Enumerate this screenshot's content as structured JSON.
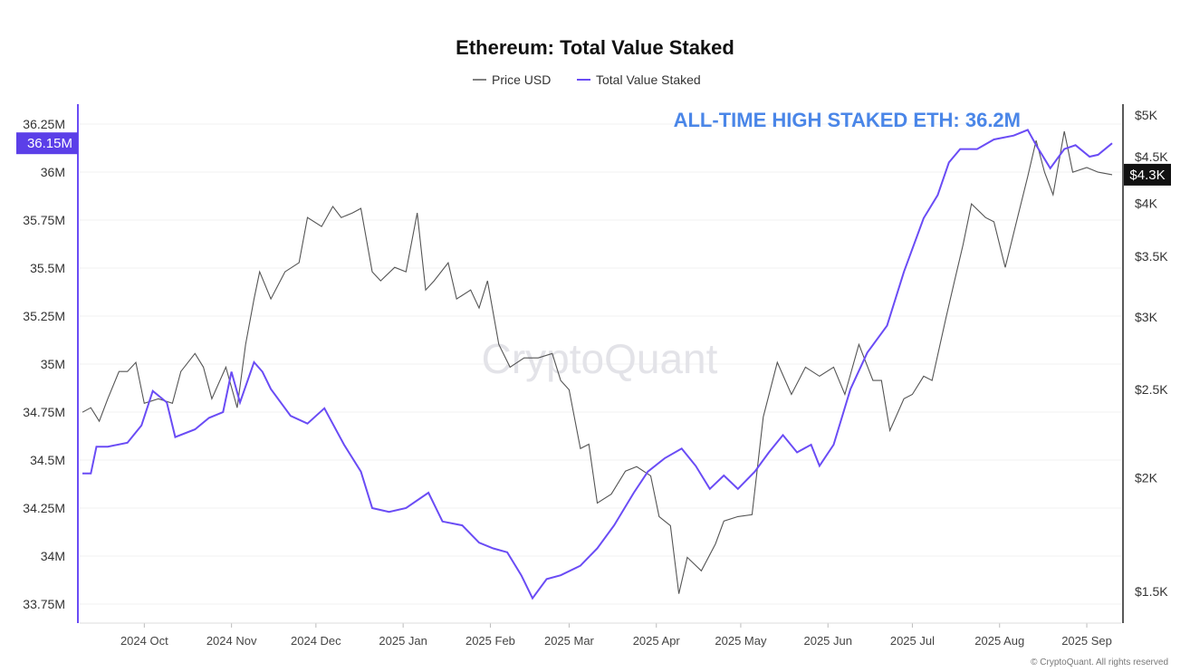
{
  "chart_data": {
    "type": "line",
    "title": "Ethereum: Total Value Staked",
    "annotation": "ALL-TIME HIGH STAKED ETH: 36.2M",
    "watermark": "CryptoQuant",
    "copyright": "© CryptoQuant. All rights reserved",
    "legend_position": "top-center",
    "grid": true,
    "x_axis": {
      "type": "date",
      "range": [
        "2024-09-09",
        "2025-09-10"
      ],
      "ticks": [
        {
          "date": "2024-10-01",
          "label": "2024 Oct"
        },
        {
          "date": "2024-11-01",
          "label": "2024 Nov"
        },
        {
          "date": "2024-12-01",
          "label": "2024 Dec"
        },
        {
          "date": "2025-01-01",
          "label": "2025 Jan"
        },
        {
          "date": "2025-02-01",
          "label": "2025 Feb"
        },
        {
          "date": "2025-03-01",
          "label": "2025 Mar"
        },
        {
          "date": "2025-04-01",
          "label": "2025 Apr"
        },
        {
          "date": "2025-05-01",
          "label": "2025 May"
        },
        {
          "date": "2025-06-01",
          "label": "2025 Jun"
        },
        {
          "date": "2025-07-01",
          "label": "2025 Jul"
        },
        {
          "date": "2025-08-01",
          "label": "2025 Aug"
        },
        {
          "date": "2025-09-01",
          "label": "2025 Sep"
        }
      ]
    },
    "y_left": {
      "range": [
        33.75,
        36.25
      ],
      "unit": "M",
      "ticks": [
        {
          "value": 36.25,
          "label": "36.25M"
        },
        {
          "value": 36.0,
          "label": "36M"
        },
        {
          "value": 35.75,
          "label": "35.75M"
        },
        {
          "value": 35.5,
          "label": "35.5M"
        },
        {
          "value": 35.25,
          "label": "35.25M"
        },
        {
          "value": 35.0,
          "label": "35M"
        },
        {
          "value": 34.75,
          "label": "34.75M"
        },
        {
          "value": 34.5,
          "label": "34.5M"
        },
        {
          "value": 34.25,
          "label": "34.25M"
        },
        {
          "value": 34.0,
          "label": "34M"
        },
        {
          "value": 33.75,
          "label": "33.75M"
        }
      ],
      "current_badge": {
        "value": 36.15,
        "label": "36.15M"
      }
    },
    "y_right": {
      "scale": "log",
      "range": [
        1500,
        5000
      ],
      "ticks": [
        {
          "value": 5000,
          "label": "$5K"
        },
        {
          "value": 4500,
          "label": "$4.5K"
        },
        {
          "value": 4000,
          "label": "$4K"
        },
        {
          "value": 3500,
          "label": "$3.5K"
        },
        {
          "value": 3000,
          "label": "$3K"
        },
        {
          "value": 2500,
          "label": "$2.5K"
        },
        {
          "value": 2000,
          "label": "$2K"
        },
        {
          "value": 1500,
          "label": "$1.5K"
        }
      ],
      "current_badge": {
        "value": 4300,
        "label": "$4.3K"
      }
    },
    "series": [
      {
        "name": "Price USD",
        "axis": "right",
        "color": "#555555",
        "points": [
          [
            "2024-09-09",
            2359
          ],
          [
            "2024-09-12",
            2386
          ],
          [
            "2024-09-15",
            2306
          ],
          [
            "2024-09-18",
            2441
          ],
          [
            "2024-09-22",
            2615
          ],
          [
            "2024-09-25",
            2615
          ],
          [
            "2024-09-28",
            2676
          ],
          [
            "2024-10-01",
            2413
          ],
          [
            "2024-10-06",
            2441
          ],
          [
            "2024-10-11",
            2413
          ],
          [
            "2024-10-14",
            2615
          ],
          [
            "2024-10-19",
            2737
          ],
          [
            "2024-10-22",
            2644
          ],
          [
            "2024-10-25",
            2441
          ],
          [
            "2024-10-30",
            2644
          ],
          [
            "2024-11-03",
            2386
          ],
          [
            "2024-11-06",
            2800
          ],
          [
            "2024-11-09",
            3141
          ],
          [
            "2024-11-11",
            3364
          ],
          [
            "2024-11-15",
            3141
          ],
          [
            "2024-11-20",
            3364
          ],
          [
            "2024-11-25",
            3442
          ],
          [
            "2024-11-28",
            3859
          ],
          [
            "2024-12-03",
            3772
          ],
          [
            "2024-12-07",
            3968
          ],
          [
            "2024-12-10",
            3859
          ],
          [
            "2024-12-14",
            3904
          ],
          [
            "2024-12-17",
            3949
          ],
          [
            "2024-12-21",
            3364
          ],
          [
            "2024-12-24",
            3288
          ],
          [
            "2024-12-29",
            3402
          ],
          [
            "2025-01-02",
            3364
          ],
          [
            "2025-01-06",
            3904
          ],
          [
            "2025-01-09",
            3213
          ],
          [
            "2025-01-12",
            3288
          ],
          [
            "2025-01-17",
            3442
          ],
          [
            "2025-01-20",
            3141
          ],
          [
            "2025-01-25",
            3213
          ],
          [
            "2025-01-28",
            3070
          ],
          [
            "2025-01-31",
            3288
          ],
          [
            "2025-02-04",
            2800
          ],
          [
            "2025-02-08",
            2644
          ],
          [
            "2025-02-13",
            2706
          ],
          [
            "2025-02-18",
            2706
          ],
          [
            "2025-02-23",
            2737
          ],
          [
            "2025-02-26",
            2556
          ],
          [
            "2025-03-01",
            2497
          ],
          [
            "2025-03-05",
            2152
          ],
          [
            "2025-03-08",
            2176
          ],
          [
            "2025-03-11",
            1875
          ],
          [
            "2025-03-16",
            1918
          ],
          [
            "2025-03-21",
            2033
          ],
          [
            "2025-03-25",
            2056
          ],
          [
            "2025-03-30",
            2009
          ],
          [
            "2025-04-02",
            1812
          ],
          [
            "2025-04-06",
            1771
          ],
          [
            "2025-04-09",
            1491
          ],
          [
            "2025-04-12",
            1635
          ],
          [
            "2025-04-17",
            1580
          ],
          [
            "2025-04-22",
            1691
          ],
          [
            "2025-04-25",
            1792
          ],
          [
            "2025-04-30",
            1812
          ],
          [
            "2025-05-05",
            1821
          ],
          [
            "2025-05-09",
            2331
          ],
          [
            "2025-05-14",
            2676
          ],
          [
            "2025-05-19",
            2468
          ],
          [
            "2025-05-24",
            2644
          ],
          [
            "2025-05-29",
            2584
          ],
          [
            "2025-06-03",
            2644
          ],
          [
            "2025-06-07",
            2468
          ],
          [
            "2025-06-12",
            2800
          ],
          [
            "2025-06-17",
            2556
          ],
          [
            "2025-06-20",
            2556
          ],
          [
            "2025-06-23",
            2253
          ],
          [
            "2025-06-28",
            2441
          ],
          [
            "2025-07-01",
            2468
          ],
          [
            "2025-07-05",
            2584
          ],
          [
            "2025-07-08",
            2556
          ],
          [
            "2025-07-13",
            3000
          ],
          [
            "2025-07-16",
            3288
          ],
          [
            "2025-07-19",
            3603
          ],
          [
            "2025-07-22",
            3994
          ],
          [
            "2025-07-27",
            3859
          ],
          [
            "2025-07-30",
            3817
          ],
          [
            "2025-08-03",
            3402
          ],
          [
            "2025-08-07",
            3817
          ],
          [
            "2025-08-11",
            4279
          ],
          [
            "2025-08-14",
            4689
          ],
          [
            "2025-08-17",
            4328
          ],
          [
            "2025-08-20",
            4087
          ],
          [
            "2025-08-24",
            4798
          ],
          [
            "2025-08-27",
            4328
          ],
          [
            "2025-09-01",
            4378
          ],
          [
            "2025-09-05",
            4328
          ],
          [
            "2025-09-10",
            4300
          ]
        ]
      },
      {
        "name": "Total Value Staked",
        "axis": "left",
        "color": "#6a4cf5",
        "points": [
          [
            "2024-09-09",
            34.43
          ],
          [
            "2024-09-12",
            34.43
          ],
          [
            "2024-09-14",
            34.57
          ],
          [
            "2024-09-18",
            34.57
          ],
          [
            "2024-09-25",
            34.59
          ],
          [
            "2024-09-30",
            34.68
          ],
          [
            "2024-10-04",
            34.86
          ],
          [
            "2024-10-09",
            34.8
          ],
          [
            "2024-10-12",
            34.62
          ],
          [
            "2024-10-19",
            34.66
          ],
          [
            "2024-10-24",
            34.72
          ],
          [
            "2024-10-29",
            34.75
          ],
          [
            "2024-11-01",
            34.96
          ],
          [
            "2024-11-04",
            34.8
          ],
          [
            "2024-11-09",
            35.01
          ],
          [
            "2024-11-12",
            34.96
          ],
          [
            "2024-11-15",
            34.87
          ],
          [
            "2024-11-22",
            34.73
          ],
          [
            "2024-11-28",
            34.69
          ],
          [
            "2024-12-04",
            34.77
          ],
          [
            "2024-12-11",
            34.58
          ],
          [
            "2024-12-17",
            34.44
          ],
          [
            "2024-12-21",
            34.25
          ],
          [
            "2024-12-27",
            34.23
          ],
          [
            "2025-01-02",
            34.25
          ],
          [
            "2025-01-10",
            34.33
          ],
          [
            "2025-01-15",
            34.18
          ],
          [
            "2025-01-22",
            34.16
          ],
          [
            "2025-01-28",
            34.07
          ],
          [
            "2025-02-02",
            34.04
          ],
          [
            "2025-02-07",
            34.02
          ],
          [
            "2025-02-12",
            33.9
          ],
          [
            "2025-02-16",
            33.78
          ],
          [
            "2025-02-21",
            33.88
          ],
          [
            "2025-02-26",
            33.9
          ],
          [
            "2025-03-05",
            33.95
          ],
          [
            "2025-03-11",
            34.04
          ],
          [
            "2025-03-17",
            34.16
          ],
          [
            "2025-03-24",
            34.33
          ],
          [
            "2025-03-29",
            34.44
          ],
          [
            "2025-04-04",
            34.51
          ],
          [
            "2025-04-10",
            34.56
          ],
          [
            "2025-04-15",
            34.47
          ],
          [
            "2025-04-20",
            34.35
          ],
          [
            "2025-04-25",
            34.42
          ],
          [
            "2025-04-30",
            34.35
          ],
          [
            "2025-05-06",
            34.44
          ],
          [
            "2025-05-11",
            34.54
          ],
          [
            "2025-05-16",
            34.63
          ],
          [
            "2025-05-21",
            34.54
          ],
          [
            "2025-05-26",
            34.58
          ],
          [
            "2025-05-29",
            34.47
          ],
          [
            "2025-06-03",
            34.58
          ],
          [
            "2025-06-09",
            34.87
          ],
          [
            "2025-06-15",
            35.06
          ],
          [
            "2025-06-22",
            35.2
          ],
          [
            "2025-06-28",
            35.48
          ],
          [
            "2025-07-05",
            35.76
          ],
          [
            "2025-07-10",
            35.88
          ],
          [
            "2025-07-14",
            36.05
          ],
          [
            "2025-07-18",
            36.12
          ],
          [
            "2025-07-24",
            36.12
          ],
          [
            "2025-07-30",
            36.17
          ],
          [
            "2025-08-06",
            36.19
          ],
          [
            "2025-08-11",
            36.22
          ],
          [
            "2025-08-14",
            36.14
          ],
          [
            "2025-08-19",
            36.02
          ],
          [
            "2025-08-24",
            36.12
          ],
          [
            "2025-08-28",
            36.14
          ],
          [
            "2025-09-02",
            36.08
          ],
          [
            "2025-09-05",
            36.09
          ],
          [
            "2025-09-10",
            36.15
          ]
        ]
      }
    ]
  }
}
